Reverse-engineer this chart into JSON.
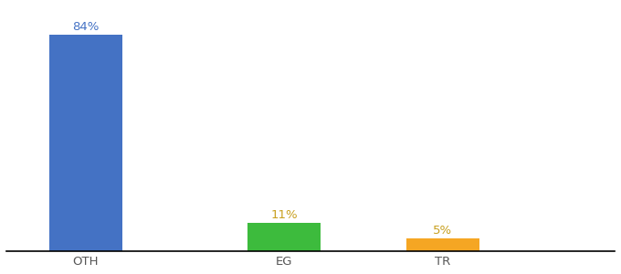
{
  "title": "",
  "categories": [
    "OTH",
    "EG",
    "TR"
  ],
  "values": [
    84,
    11,
    5
  ],
  "bar_colors": [
    "#4472c4",
    "#3dbb3d",
    "#f5a623"
  ],
  "label_texts": [
    "84%",
    "11%",
    "5%"
  ],
  "label_colors": [
    "#7090d0",
    "#c8a020",
    "#c8a020"
  ],
  "background_color": "#ffffff",
  "ylim": [
    0,
    95
  ],
  "bar_width": 0.55,
  "label_fontsize": 9.5,
  "tick_fontsize": 9.5
}
